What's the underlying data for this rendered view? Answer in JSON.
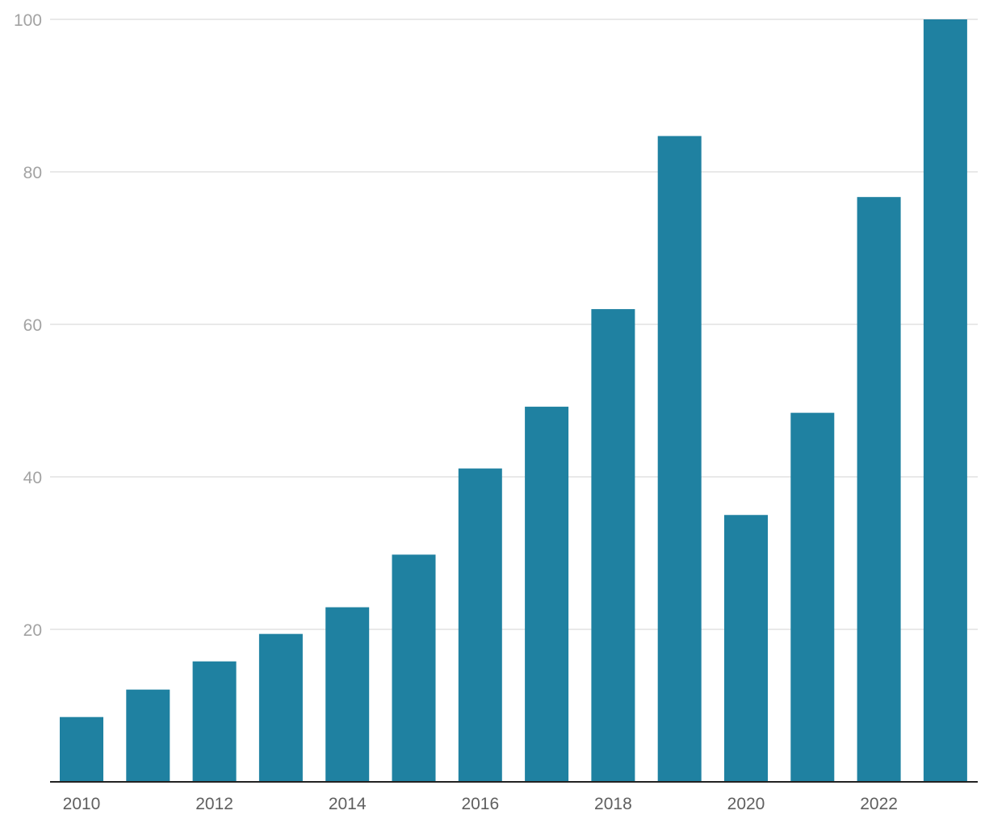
{
  "chart_data": {
    "type": "bar",
    "title": "",
    "xlabel": "",
    "ylabel": "",
    "categories": [
      "2010",
      "2011",
      "2012",
      "2013",
      "2014",
      "2015",
      "2016",
      "2017",
      "2018",
      "2019",
      "2020",
      "2021",
      "2022",
      "2023"
    ],
    "values": [
      8.5,
      12.1,
      15.8,
      19.4,
      22.9,
      29.8,
      41.1,
      49.2,
      62.0,
      84.7,
      35.0,
      48.4,
      76.7,
      100.0
    ],
    "ylim": [
      0,
      100
    ],
    "y_ticks": [
      "20",
      "40",
      "60",
      "80",
      "100"
    ],
    "x_tick_labels": [
      "2010",
      "",
      "2012",
      "",
      "2014",
      "",
      "2016",
      "",
      "2018",
      "",
      "2020",
      "",
      "2022",
      ""
    ],
    "grid": "horizontal",
    "legend": "none",
    "bar_color": "#1f81a1"
  }
}
